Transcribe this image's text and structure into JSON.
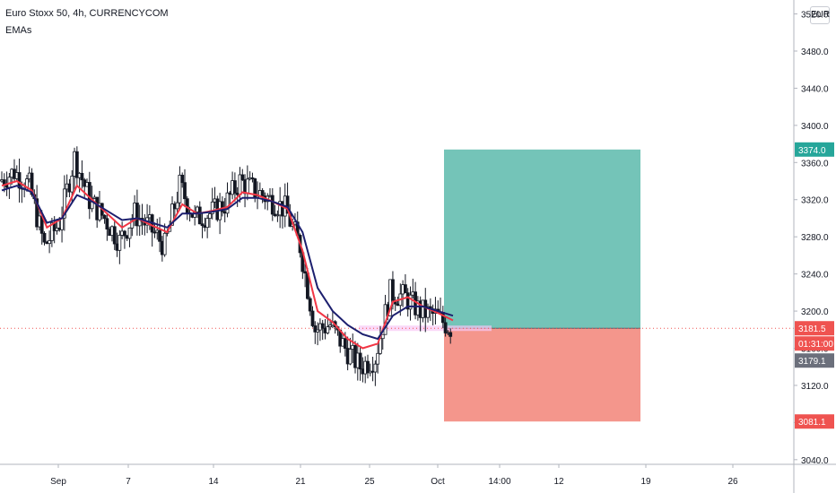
{
  "header": {
    "title": "Euro Stoxx 50, 4h, CURRENCYCOM",
    "indicator": "EMAs"
  },
  "currency": "EUR",
  "colors": {
    "up": "#26a69a",
    "down": "#ef5350",
    "candle": "#131722",
    "ema_fast": "#f23645",
    "ema_slow": "#1c1f6e",
    "target_zone": "#74c4b8",
    "stop_zone": "#f4968c",
    "last_price": "#ef5350",
    "countdown": "#ef5350",
    "bid": "#6b6f7b"
  },
  "chart_data": {
    "type": "candlestick",
    "title": "Euro Stoxx 50, 4h, CURRENCYCOM",
    "y_axis": {
      "ticks": [
        3040.0,
        3080.0,
        3120.0,
        3160.0,
        3200.0,
        3240.0,
        3280.0,
        3320.0,
        3360.0,
        3400.0,
        3440.0,
        3480.0,
        3520.0
      ],
      "ylim": [
        3035,
        3535
      ]
    },
    "x_axis": {
      "ticks": [
        "Sep",
        "7",
        "14",
        "21",
        "25",
        "Oct",
        "14:00",
        "12",
        "19",
        "26"
      ]
    },
    "series": [
      {
        "name": "price",
        "kind": "close_path",
        "points": [
          [
            "Sep 1",
            3340
          ],
          [
            "Sep 2",
            3350
          ],
          [
            "Sep 3",
            3335
          ],
          [
            "Sep 4",
            3270
          ],
          [
            "Sep 5",
            3295
          ],
          [
            "Sep 6",
            3365
          ],
          [
            "Sep 7",
            3320
          ],
          [
            "Sep 8",
            3300
          ],
          [
            "Sep 9",
            3275
          ],
          [
            "Sep 10",
            3305
          ],
          [
            "Sep 11",
            3290
          ],
          [
            "Sep 12",
            3270
          ],
          [
            "Sep 13",
            3335
          ],
          [
            "Sep 14",
            3300
          ],
          [
            "Sep 15",
            3305
          ],
          [
            "Sep 16",
            3315
          ],
          [
            "Sep 17",
            3340
          ],
          [
            "Sep 18",
            3330
          ],
          [
            "Sep 19",
            3320
          ],
          [
            "Sep 20",
            3310
          ],
          [
            "Sep 21",
            3270
          ],
          [
            "Sep 22",
            3180
          ],
          [
            "Sep 23",
            3185
          ],
          [
            "Sep 24",
            3160
          ],
          [
            "Sep 25",
            3140
          ],
          [
            "Sep 26",
            3150
          ],
          [
            "Sep 27",
            3220
          ],
          [
            "Sep 28",
            3215
          ],
          [
            "Sep 29",
            3200
          ],
          [
            "Sep 30",
            3195
          ],
          [
            "Oct 1",
            3182
          ]
        ]
      }
    ],
    "ema": [
      {
        "name": "EMA fast",
        "values": [
          3335,
          3340,
          3330,
          3290,
          3300,
          3335,
          3320,
          3305,
          3290,
          3300,
          3292,
          3285,
          3315,
          3305,
          3308,
          3312,
          3328,
          3325,
          3318,
          3310,
          3265,
          3200,
          3188,
          3170,
          3160,
          3165,
          3210,
          3215,
          3205,
          3198,
          3190
        ]
      },
      {
        "name": "EMA slow",
        "values": [
          3330,
          3335,
          3328,
          3295,
          3300,
          3325,
          3318,
          3308,
          3298,
          3300,
          3295,
          3290,
          3305,
          3305,
          3307,
          3310,
          3322,
          3322,
          3318,
          3312,
          3285,
          3225,
          3200,
          3185,
          3175,
          3170,
          3195,
          3205,
          3205,
          3200,
          3195
        ]
      }
    ],
    "position": {
      "entry": 3181.5,
      "target": 3374.0,
      "stop": 3081.1
    },
    "price_labels": {
      "target": "3374.0",
      "last": "3181.5",
      "countdown": "01:31:00",
      "bid": "3179.1",
      "stop": "3081.1"
    }
  }
}
